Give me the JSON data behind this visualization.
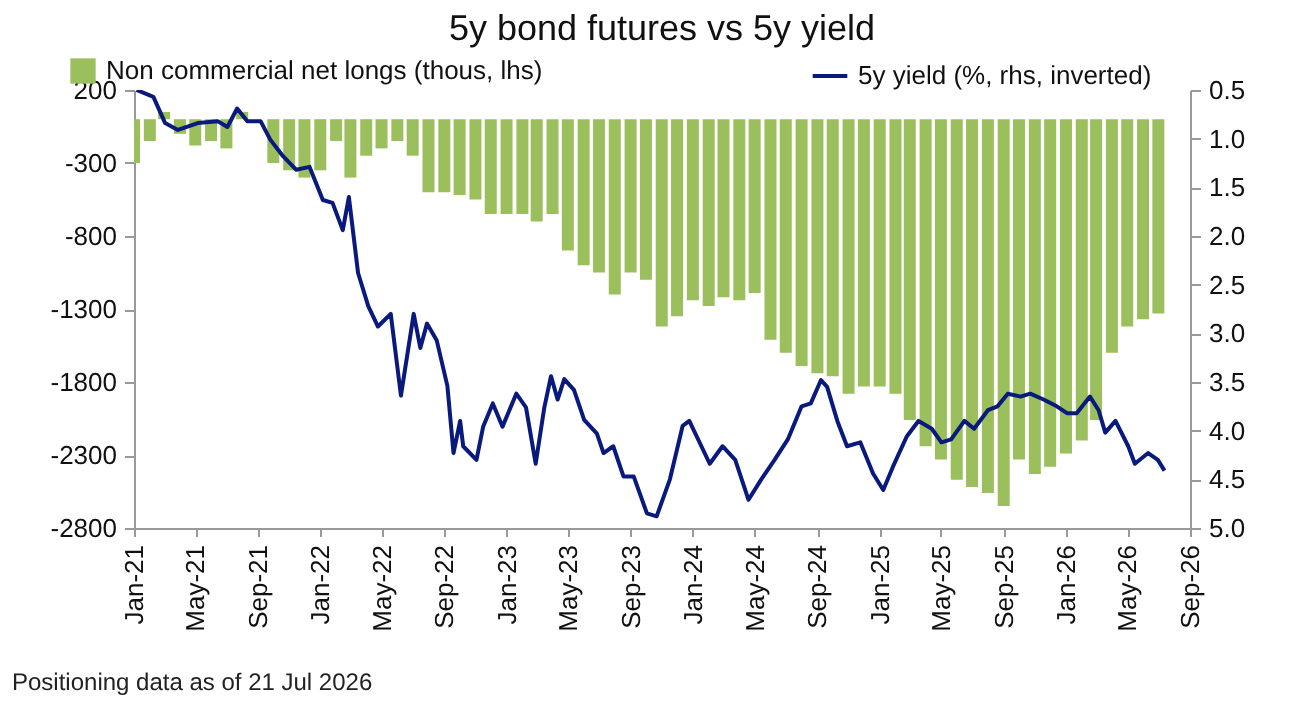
{
  "chart_data": {
    "type": "bar",
    "title": "5y bond futures vs 5y yield",
    "legend": "top",
    "annotations": [
      "Positioning data as of 21 Jul 2026"
    ],
    "xlim": [
      "2021-01-01",
      "2026-09-01"
    ],
    "xticks": [
      {
        "value": "2021-01-01",
        "label": "Jan-21"
      },
      {
        "value": "2021-05-01",
        "label": "May-21"
      },
      {
        "value": "2021-09-01",
        "label": "Sep-21"
      },
      {
        "value": "2022-01-01",
        "label": "Jan-22"
      },
      {
        "value": "2022-05-01",
        "label": "May-22"
      },
      {
        "value": "2022-09-01",
        "label": "Sep-22"
      },
      {
        "value": "2023-01-01",
        "label": "Jan-23"
      },
      {
        "value": "2023-05-01",
        "label": "May-23"
      },
      {
        "value": "2023-09-01",
        "label": "Sep-23"
      },
      {
        "value": "2024-01-01",
        "label": "Jan-24"
      },
      {
        "value": "2024-05-01",
        "label": "May-24"
      },
      {
        "value": "2024-09-01",
        "label": "Sep-24"
      },
      {
        "value": "2025-01-01",
        "label": "Jan-25"
      },
      {
        "value": "2025-05-01",
        "label": "May-25"
      },
      {
        "value": "2025-09-01",
        "label": "Sep-25"
      },
      {
        "value": "2026-01-01",
        "label": "Jan-26"
      },
      {
        "value": "2026-05-01",
        "label": "May-26"
      },
      {
        "value": "2026-09-01",
        "label": "Sep-26"
      }
    ],
    "ylim": [
      -2800,
      200
    ],
    "yticks": [
      200,
      -300,
      -800,
      -1300,
      -1800,
      -2300,
      -2800
    ],
    "y2lim": [
      5.0,
      0.5
    ],
    "y2ticks": [
      0.5,
      {
        "value": 1,
        "label": "1.0"
      },
      1.5,
      {
        "value": 2,
        "label": "2.0"
      },
      2.5,
      {
        "value": 3,
        "label": "3.0"
      },
      3.5,
      {
        "value": 4,
        "label": "4.0"
      },
      4.5,
      {
        "value": 5,
        "label": "5.0"
      }
    ],
    "series": [
      {
        "name": "Non commercial net longs (thous, lhs)",
        "type": "bar",
        "color": "#9bbf5c",
        "x": [
          "2021-01",
          "2021-02",
          "2021-03",
          "2021-04",
          "2021-05",
          "2021-06",
          "2021-07",
          "2021-08",
          "2021-09",
          "2021-10",
          "2021-11",
          "2021-12",
          "2022-01",
          "2022-02",
          "2022-03",
          "2022-04",
          "2022-05",
          "2022-06",
          "2022-07",
          "2022-08",
          "2022-09",
          "2022-10",
          "2022-11",
          "2022-12",
          "2023-01",
          "2023-02",
          "2023-03",
          "2023-04",
          "2023-05",
          "2023-06",
          "2023-07",
          "2023-08",
          "2023-09",
          "2023-10",
          "2023-11",
          "2023-12",
          "2024-01",
          "2024-02",
          "2024-03",
          "2024-04",
          "2024-05",
          "2024-06",
          "2024-07",
          "2024-08",
          "2024-09",
          "2024-10",
          "2024-11",
          "2024-12",
          "2025-01",
          "2025-02",
          "2025-03",
          "2025-04",
          "2025-05",
          "2025-06",
          "2025-07",
          "2025-08",
          "2025-09",
          "2025-10",
          "2025-11",
          "2025-12",
          "2026-01",
          "2026-02",
          "2026-03",
          "2026-04",
          "2026-05",
          "2026-06",
          "2026-07"
        ],
        "values": [
          -300,
          -150,
          50,
          -100,
          -180,
          -150,
          -200,
          50,
          null,
          -300,
          -350,
          -400,
          -350,
          -150,
          -400,
          -250,
          -200,
          -150,
          -250,
          -500,
          -500,
          -520,
          -550,
          -650,
          -650,
          -650,
          -700,
          -650,
          -900,
          -1000,
          -1050,
          -1200,
          -1050,
          -1100,
          -1420,
          -1350,
          -1240,
          -1280,
          -1220,
          -1240,
          -1190,
          -1510,
          -1600,
          -1690,
          -1740,
          -1760,
          -1880,
          -1830,
          -1830,
          -1880,
          -2060,
          -2240,
          -2330,
          -2470,
          -2520,
          -2560,
          -2650,
          -2330,
          -2430,
          -2380,
          -2290,
          -2200,
          -2060,
          -1600,
          -1420,
          -1370,
          -1330
        ]
      },
      {
        "name": "5y yield (%, rhs, inverted)",
        "type": "line",
        "axis": "y2",
        "color": "#0a1a7c",
        "x": [
          "2021-01-06",
          "2021-02-08",
          "2021-03-03",
          "2021-03-28",
          "2021-05-06",
          "2021-06-14",
          "2021-07-03",
          "2021-07-22",
          "2021-08-11",
          "2021-09-06",
          "2021-09-25",
          "2021-10-20",
          "2021-11-15",
          "2021-12-11",
          "2022-01-06",
          "2022-01-25",
          "2022-02-14",
          "2022-02-26",
          "2022-03-16",
          "2022-04-05",
          "2022-04-24",
          "2022-05-19",
          "2022-06-08",
          "2022-07-03",
          "2022-07-16",
          "2022-07-29",
          "2022-08-17",
          "2022-09-07",
          "2022-09-19",
          "2022-10-02",
          "2022-10-08",
          "2022-11-03",
          "2022-11-16",
          "2022-12-05",
          "2022-12-24",
          "2023-01-20",
          "2023-02-08",
          "2023-02-27",
          "2023-03-16",
          "2023-03-29",
          "2023-04-11",
          "2023-04-24",
          "2023-05-13",
          "2023-06-02",
          "2023-06-27",
          "2023-07-10",
          "2023-07-29",
          "2023-08-18",
          "2023-09-07",
          "2023-10-03",
          "2023-10-22",
          "2023-11-17",
          "2023-12-12",
          "2023-12-25",
          "2024-02-03",
          "2024-02-28",
          "2024-03-24",
          "2024-04-19",
          "2024-05-14",
          "2024-06-09",
          "2024-07-05",
          "2024-08-01",
          "2024-08-19",
          "2024-09-08",
          "2024-09-20",
          "2024-10-10",
          "2024-10-29",
          "2024-11-24",
          "2024-12-19",
          "2025-01-08",
          "2025-01-27",
          "2025-02-23",
          "2025-03-18",
          "2025-04-13",
          "2025-05-02",
          "2025-05-21",
          "2025-06-16",
          "2025-07-05",
          "2025-08-01",
          "2025-08-20",
          "2025-09-09",
          "2025-10-04",
          "2025-10-23",
          "2025-11-18",
          "2025-12-14",
          "2026-01-03",
          "2026-01-22",
          "2026-02-17",
          "2026-03-06",
          "2026-03-19",
          "2026-04-08",
          "2026-05-03",
          "2026-05-16",
          "2026-06-11",
          "2026-06-30",
          "2026-07-13"
        ],
        "values": [
          0.5,
          0.57,
          0.84,
          0.91,
          0.84,
          0.82,
          0.88,
          0.69,
          0.82,
          0.82,
          1.01,
          1.18,
          1.32,
          1.29,
          1.63,
          1.66,
          1.94,
          1.6,
          2.38,
          2.72,
          2.93,
          2.8,
          3.64,
          2.8,
          3.15,
          2.9,
          3.07,
          3.54,
          4.23,
          3.9,
          4.16,
          4.3,
          3.96,
          3.72,
          3.96,
          3.62,
          3.76,
          4.34,
          3.76,
          3.44,
          3.68,
          3.47,
          3.58,
          3.89,
          4.03,
          4.23,
          4.16,
          4.47,
          4.47,
          4.85,
          4.88,
          4.5,
          3.95,
          3.9,
          4.34,
          4.16,
          4.3,
          4.71,
          4.5,
          4.3,
          4.09,
          3.75,
          3.72,
          3.48,
          3.55,
          3.9,
          4.16,
          4.12,
          4.44,
          4.61,
          4.37,
          4.06,
          3.9,
          3.98,
          4.12,
          4.09,
          3.9,
          3.98,
          3.79,
          3.75,
          3.62,
          3.65,
          3.62,
          3.68,
          3.75,
          3.82,
          3.82,
          3.65,
          3.79,
          4.02,
          3.9,
          4.16,
          4.34,
          4.23,
          4.3,
          4.41
        ]
      }
    ]
  }
}
